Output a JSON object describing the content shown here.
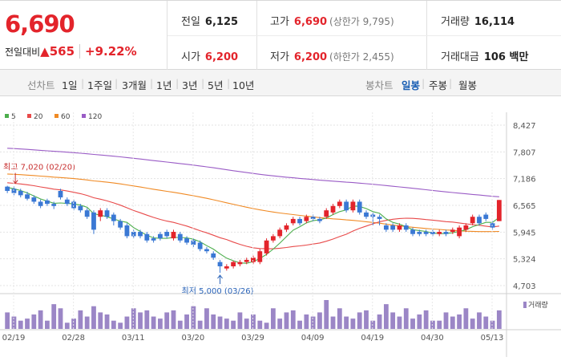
{
  "quote": {
    "current": "6,690",
    "change_label": "전일대비",
    "change_arrow": "▲",
    "change_value": "565",
    "change_pct": "+9.22%",
    "prev_close_label": "전일",
    "prev_close": "6,125",
    "high_label": "고가",
    "high": "6,690",
    "upper_limit": "(상한가 9,795)",
    "volume_label": "거래량",
    "volume": "16,114",
    "open_label": "시가",
    "open": "6,200",
    "low_label": "저가",
    "low": "6,200",
    "lower_limit": "(하한가 2,455)",
    "amount_label": "거래대금",
    "amount": "106 백만"
  },
  "tabs": {
    "line_chart": "선차트",
    "periods": [
      "1일",
      "1주일",
      "3개월",
      "1년",
      "3년",
      "5년",
      "10년"
    ],
    "candle_chart": "봉차트",
    "candle_periods": [
      "일봉",
      "주봉",
      "월봉"
    ]
  },
  "colors": {
    "up": "#e3242b",
    "down": "#3a78d4",
    "ma5": "#4cae4c",
    "ma20": "#e84a4a",
    "ma60": "#f08a24",
    "ma120": "#9a5cc6",
    "vol": "#9b86c6"
  },
  "chart_data": {
    "type": "candlestick",
    "legend": [
      {
        "name": "5",
        "color": "#4cae4c"
      },
      {
        "name": "20",
        "color": "#e84a4a"
      },
      {
        "name": "60",
        "color": "#f08a24"
      },
      {
        "name": "120",
        "color": "#9a5cc6"
      }
    ],
    "y_ticks": [
      "8,427",
      "7,807",
      "7,186",
      "6,565",
      "5,945",
      "5,324",
      "4,703"
    ],
    "y_range": [
      4703,
      8427
    ],
    "x_ticks": [
      "02/19",
      "02/28",
      "03/11",
      "03/20",
      "03/29",
      "04/09",
      "04/19",
      "04/30",
      "05/13"
    ],
    "max_annotation": "최고 7,020 (02/20)",
    "min_annotation": "최저 5,000 (03/26)",
    "volume_label": "거래량",
    "candles": [
      {
        "o": 7000,
        "c": 6900,
        "h": 7020,
        "l": 6850
      },
      {
        "o": 6950,
        "c": 6850,
        "h": 7010,
        "l": 6800
      },
      {
        "o": 6900,
        "c": 6800,
        "h": 6950,
        "l": 6750
      },
      {
        "o": 6820,
        "c": 6720,
        "h": 6880,
        "l": 6680
      },
      {
        "o": 6750,
        "c": 6650,
        "h": 6800,
        "l": 6600
      },
      {
        "o": 6650,
        "c": 6550,
        "h": 6700,
        "l": 6500
      },
      {
        "o": 6680,
        "c": 6600,
        "h": 6720,
        "l": 6550
      },
      {
        "o": 6600,
        "c": 6550,
        "h": 6650,
        "l": 6480
      },
      {
        "o": 6900,
        "c": 6750,
        "h": 6950,
        "l": 6700
      },
      {
        "o": 6700,
        "c": 6600,
        "h": 6750,
        "l": 6550
      },
      {
        "o": 6650,
        "c": 6500,
        "h": 6700,
        "l": 6450
      },
      {
        "o": 6550,
        "c": 6450,
        "h": 6600,
        "l": 6400
      },
      {
        "o": 6450,
        "c": 6300,
        "h": 6500,
        "l": 6250
      },
      {
        "o": 6400,
        "c": 6000,
        "h": 6450,
        "l": 5900
      },
      {
        "o": 6300,
        "c": 6450,
        "h": 6500,
        "l": 6200
      },
      {
        "o": 6450,
        "c": 6300,
        "h": 6500,
        "l": 6250
      },
      {
        "o": 6350,
        "c": 6200,
        "h": 6400,
        "l": 6100
      },
      {
        "o": 6200,
        "c": 6050,
        "h": 6250,
        "l": 6000
      },
      {
        "o": 6100,
        "c": 5850,
        "h": 6150,
        "l": 5800
      },
      {
        "o": 5950,
        "c": 5850,
        "h": 6000,
        "l": 5800
      },
      {
        "o": 5950,
        "c": 5850,
        "h": 6000,
        "l": 5800
      },
      {
        "o": 5900,
        "c": 5750,
        "h": 5950,
        "l": 5700
      },
      {
        "o": 5800,
        "c": 5750,
        "h": 5850,
        "l": 5700
      },
      {
        "o": 5900,
        "c": 5800,
        "h": 5950,
        "l": 5750
      },
      {
        "o": 5950,
        "c": 5850,
        "h": 6000,
        "l": 5800
      },
      {
        "o": 5800,
        "c": 5950,
        "h": 6000,
        "l": 5750
      },
      {
        "o": 5900,
        "c": 5750,
        "h": 5950,
        "l": 5700
      },
      {
        "o": 5800,
        "c": 5700,
        "h": 5850,
        "l": 5650
      },
      {
        "o": 5750,
        "c": 5650,
        "h": 5800,
        "l": 5600
      },
      {
        "o": 5700,
        "c": 5550,
        "h": 5750,
        "l": 5500
      },
      {
        "o": 5550,
        "c": 5500,
        "h": 5600,
        "l": 5450
      },
      {
        "o": 5450,
        "c": 5350,
        "h": 5500,
        "l": 5300
      },
      {
        "o": 5250,
        "c": 5150,
        "h": 5300,
        "l": 5000
      },
      {
        "o": 5100,
        "c": 5150,
        "h": 5200,
        "l": 5050
      },
      {
        "o": 5150,
        "c": 5250,
        "h": 5280,
        "l": 5100
      },
      {
        "o": 5200,
        "c": 5250,
        "h": 5300,
        "l": 5150
      },
      {
        "o": 5250,
        "c": 5300,
        "h": 5350,
        "l": 5200
      },
      {
        "o": 5250,
        "c": 5350,
        "h": 5400,
        "l": 5200
      },
      {
        "o": 5250,
        "c": 5500,
        "h": 5550,
        "l": 5200
      },
      {
        "o": 5450,
        "c": 5750,
        "h": 5800,
        "l": 5400
      },
      {
        "o": 5750,
        "c": 5850,
        "h": 5900,
        "l": 5700
      },
      {
        "o": 5850,
        "c": 6000,
        "h": 6050,
        "l": 5800
      },
      {
        "o": 6000,
        "c": 6100,
        "h": 6150,
        "l": 5950
      },
      {
        "o": 6150,
        "c": 6250,
        "h": 6300,
        "l": 6100
      },
      {
        "o": 6250,
        "c": 6150,
        "h": 6300,
        "l": 6100
      },
      {
        "o": 6200,
        "c": 6300,
        "h": 6350,
        "l": 6150
      },
      {
        "o": 6300,
        "c": 6250,
        "h": 6350,
        "l": 6200
      },
      {
        "o": 6250,
        "c": 6200,
        "h": 6300,
        "l": 6150
      },
      {
        "o": 6300,
        "c": 6450,
        "h": 6500,
        "l": 6250
      },
      {
        "o": 6400,
        "c": 6550,
        "h": 6600,
        "l": 6350
      },
      {
        "o": 6550,
        "c": 6650,
        "h": 6700,
        "l": 6500
      },
      {
        "o": 6650,
        "c": 6450,
        "h": 6700,
        "l": 6400
      },
      {
        "o": 6450,
        "c": 6650,
        "h": 6700,
        "l": 6400
      },
      {
        "o": 6650,
        "c": 6400,
        "h": 6700,
        "l": 6350
      },
      {
        "o": 6400,
        "c": 6300,
        "h": 6450,
        "l": 6250
      },
      {
        "o": 6350,
        "c": 6300,
        "h": 6400,
        "l": 6100
      },
      {
        "o": 6300,
        "c": 6250,
        "h": 6350,
        "l": 6100
      },
      {
        "o": 6100,
        "c": 6000,
        "h": 6150,
        "l": 5950
      },
      {
        "o": 6100,
        "c": 6000,
        "h": 6150,
        "l": 5950
      },
      {
        "o": 6000,
        "c": 6100,
        "h": 6150,
        "l": 5950
      },
      {
        "o": 6100,
        "c": 6000,
        "h": 6150,
        "l": 5950
      },
      {
        "o": 6000,
        "c": 5900,
        "h": 6050,
        "l": 5850
      },
      {
        "o": 5950,
        "c": 5900,
        "h": 6000,
        "l": 5850
      },
      {
        "o": 5950,
        "c": 5900,
        "h": 6000,
        "l": 5850
      },
      {
        "o": 5950,
        "c": 5900,
        "h": 6000,
        "l": 5850
      },
      {
        "o": 5900,
        "c": 5950,
        "h": 6000,
        "l": 5850
      },
      {
        "o": 5950,
        "c": 5900,
        "h": 6000,
        "l": 5850
      },
      {
        "o": 5950,
        "c": 6000,
        "h": 6050,
        "l": 5900
      },
      {
        "o": 5850,
        "c": 6050,
        "h": 6100,
        "l": 5800
      },
      {
        "o": 6000,
        "c": 6100,
        "h": 6150,
        "l": 5950
      },
      {
        "o": 6150,
        "c": 6300,
        "h": 6350,
        "l": 6100
      },
      {
        "o": 6300,
        "c": 6150,
        "h": 6350,
        "l": 6100
      },
      {
        "o": 6350,
        "c": 6250,
        "h": 6400,
        "l": 6200
      },
      {
        "o": 6150,
        "c": 6050,
        "h": 6200,
        "l": 6000
      },
      {
        "o": 6200,
        "c": 6690,
        "h": 6690,
        "l": 6200
      }
    ],
    "volumes": [
      40,
      30,
      20,
      25,
      35,
      45,
      20,
      60,
      50,
      15,
      25,
      45,
      30,
      55,
      40,
      35,
      20,
      15,
      30,
      50,
      40,
      45,
      30,
      25,
      40,
      45,
      20,
      35,
      55,
      20,
      50,
      35,
      30,
      25,
      20,
      40,
      25,
      35,
      20,
      15,
      50,
      25,
      40,
      45,
      20,
      35,
      30,
      40,
      70,
      30,
      50,
      30,
      25,
      40,
      45,
      20,
      35,
      60,
      40,
      30,
      50,
      25,
      35,
      45,
      20,
      20,
      40,
      30,
      35,
      50,
      25,
      40,
      30,
      20,
      45
    ]
  }
}
